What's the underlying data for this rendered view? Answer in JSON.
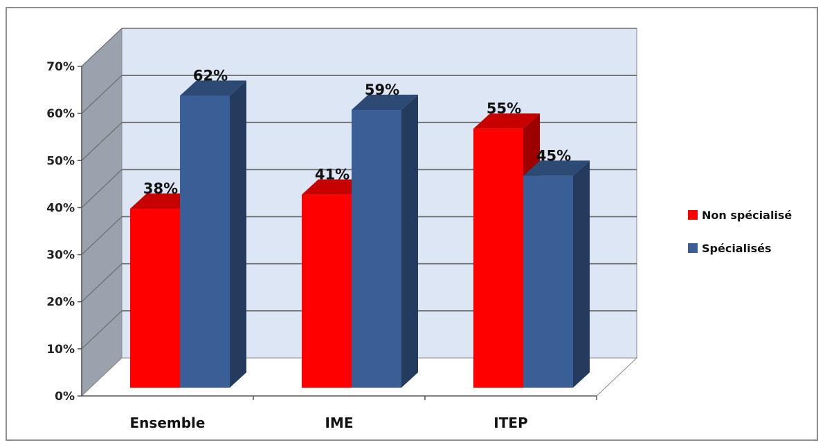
{
  "chart_data": {
    "type": "bar",
    "categories": [
      "Ensemble",
      "IME",
      "ITEP"
    ],
    "series": [
      {
        "name": "Non spécialisé",
        "values": [
          38,
          41,
          55
        ],
        "color": "#ff0000"
      },
      {
        "name": "Spécialisés",
        "values": [
          62,
          59,
          45
        ],
        "color": "#3a5f96"
      }
    ],
    "data_labels": [
      [
        "38%",
        "41%",
        "55%"
      ],
      [
        "62%",
        "59%",
        "45%"
      ]
    ],
    "yticks": [
      "0%",
      "10%",
      "20%",
      "30%",
      "40%",
      "50%",
      "60%",
      "70%"
    ],
    "ylim": [
      0,
      70
    ],
    "grid": true,
    "legend_position": "right",
    "style": "3d-clustered-column",
    "wall_color": "#dde6f4",
    "side_wall_color": "#9aa3ad"
  }
}
